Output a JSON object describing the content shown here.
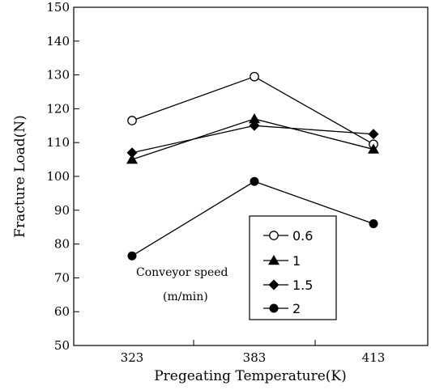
{
  "chart_data": {
    "type": "line",
    "title": "",
    "xlabel": "Pregeating Temperature(K)",
    "ylabel": "Fracture Load(N)",
    "categories": [
      "323",
      "383",
      "413"
    ],
    "ylim": [
      50,
      150
    ],
    "yticks": [
      50,
      60,
      70,
      80,
      90,
      100,
      110,
      120,
      130,
      140,
      150
    ],
    "grid": false,
    "legend_title": "Conveyor speed",
    "legend_title_unit": "(m/min)",
    "legend_position": "bottom-right",
    "series": [
      {
        "name": "0.6",
        "marker": "open-circle",
        "values": [
          116.5,
          129.5,
          109.5
        ]
      },
      {
        "name": "1",
        "marker": "filled-triangle",
        "values": [
          105,
          117,
          108
        ]
      },
      {
        "name": "1.5",
        "marker": "filled-diamond",
        "values": [
          107,
          115,
          112.5
        ]
      },
      {
        "name": "2",
        "marker": "filled-circle",
        "values": [
          76.5,
          98.5,
          86
        ]
      }
    ]
  }
}
